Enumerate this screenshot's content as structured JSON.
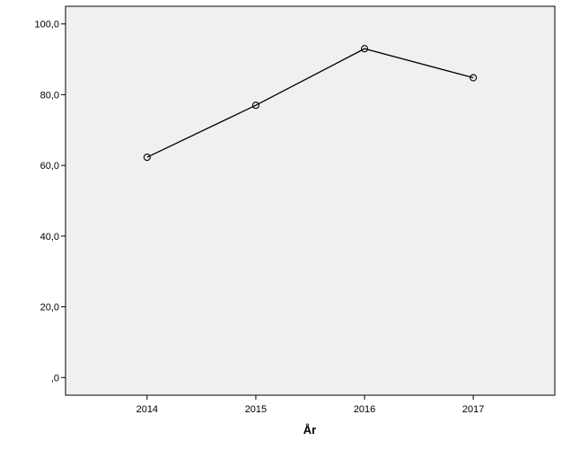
{
  "chart_data": {
    "type": "line",
    "title": "",
    "xlabel": "År",
    "ylabel": "",
    "categories": [
      "2014",
      "2015",
      "2016",
      "2017"
    ],
    "series": [
      {
        "values": [
          62.3,
          77.0,
          93.0,
          84.8
        ]
      }
    ],
    "ylim": [
      -5,
      105
    ],
    "yticks": [
      0,
      20,
      40,
      60,
      80,
      100
    ],
    "ytick_labels": [
      ",0",
      "20,0",
      "40,0",
      "60,0",
      "80,0",
      "100,0"
    ],
    "grid": false,
    "legend": "none",
    "marker": "open-circle",
    "colors": {
      "plot_background": "#f0f0f0",
      "line": "#000000",
      "frame": "#000000"
    }
  }
}
